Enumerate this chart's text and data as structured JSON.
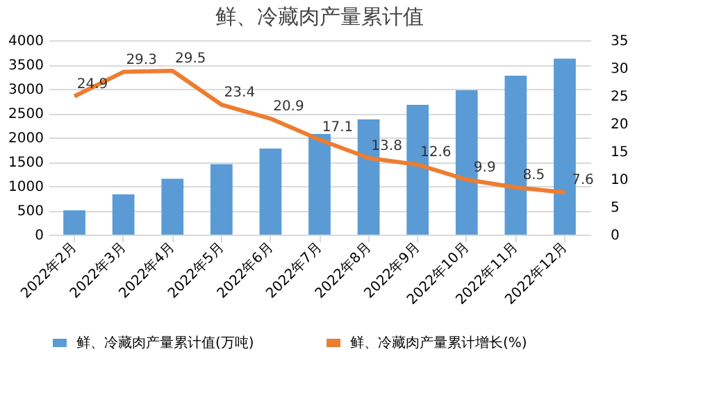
{
  "chart_data": {
    "type": "bar",
    "title": "鲜、冷藏肉产量累计值",
    "categories": [
      "2022年2月",
      "2022年3月",
      "2022年4月",
      "2022年5月",
      "2022年6月",
      "2022年7月",
      "2022年8月",
      "2022年9月",
      "2022年10月",
      "2022年11月",
      "2022年12月"
    ],
    "series": [
      {
        "name": "鲜、冷藏肉产量累计值(万吨)",
        "color": "#5b9bd5",
        "values": [
          500,
          830,
          1150,
          1450,
          1770,
          2070,
          2370,
          2670,
          2970,
          3270,
          3620
        ]
      },
      {
        "name": "鲜、冷藏肉产量累计增长(%)",
        "color": "#ed7d31",
        "type": "line",
        "axis": "y2",
        "values": [
          24.9,
          29.3,
          29.5,
          23.4,
          20.9,
          17.1,
          13.8,
          12.6,
          9.9,
          8.5,
          7.6
        ],
        "value_labels": [
          "24.9",
          "29.3",
          "29.5",
          "23.4",
          "20.9",
          "17.1",
          "13.8",
          "12.6",
          "9.9",
          "8.5",
          "7.6"
        ]
      }
    ],
    "ylim": [
      0,
      4000
    ],
    "yticks": [
      0,
      500,
      1000,
      1500,
      2000,
      2500,
      3000,
      3500,
      4000
    ],
    "y2lim": [
      0,
      35
    ],
    "y2ticks": [
      0,
      5,
      10,
      15,
      20,
      25,
      30,
      35
    ],
    "grid": "y",
    "legend": "bottom"
  }
}
